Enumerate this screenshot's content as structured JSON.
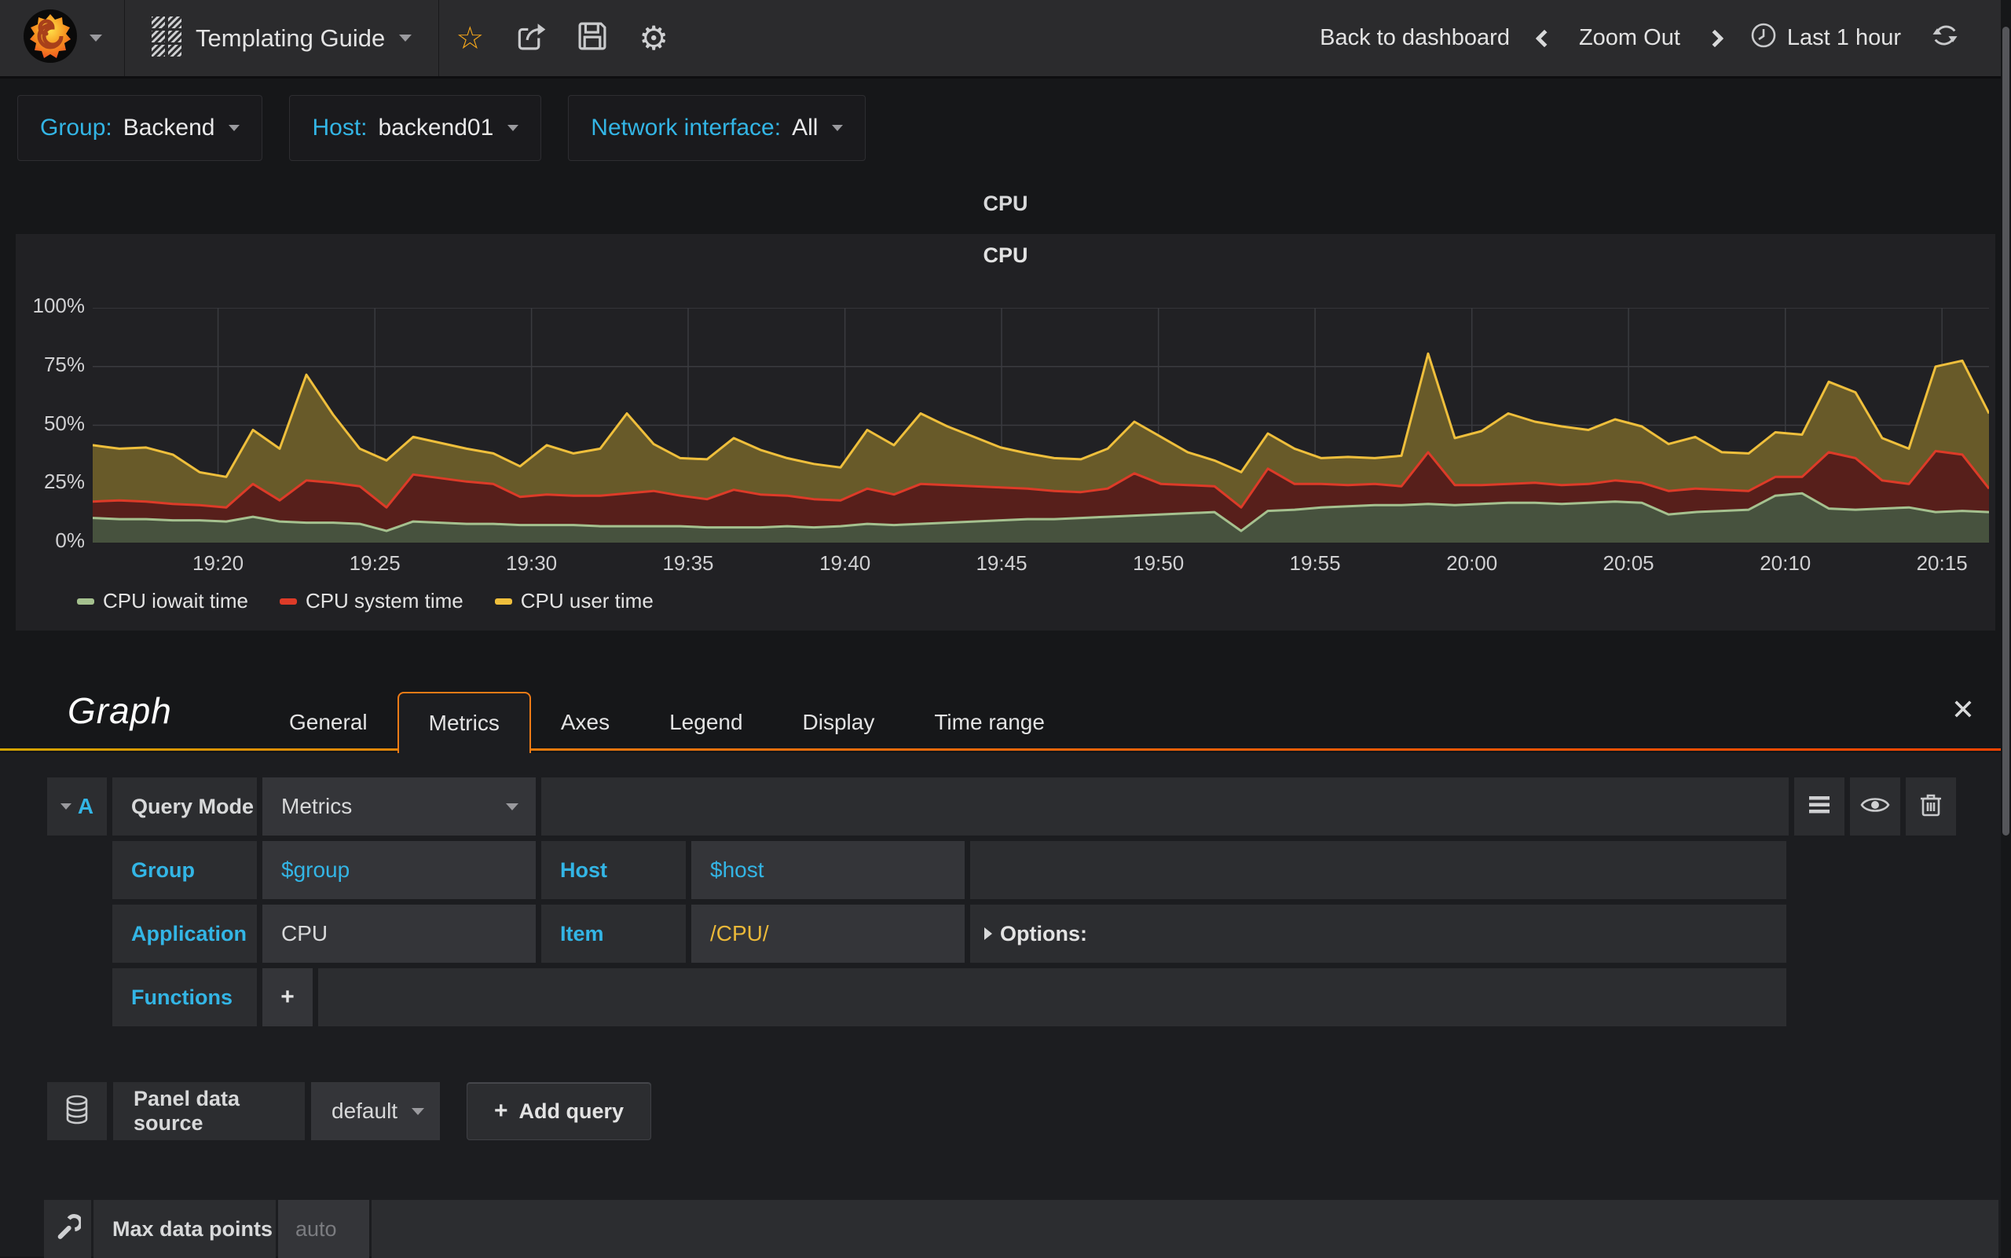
{
  "navbar": {
    "dashboard_title": "Templating Guide",
    "back_to_dashboard": "Back to dashboard",
    "zoom_out": "Zoom Out",
    "time_range": "Last 1 hour"
  },
  "variables": [
    {
      "label": "Group:",
      "value": "Backend"
    },
    {
      "label": "Host:",
      "value": "backend01"
    },
    {
      "label": "Network interface:",
      "value": "All"
    }
  ],
  "row_title": "CPU",
  "panel_title": "CPU",
  "chart_data": {
    "type": "area",
    "stacked": true,
    "title": "CPU",
    "unit": "percent",
    "ylim": [
      0,
      100
    ],
    "grid": true,
    "grid_color": "#3a3b3f",
    "legend_position": "bottom",
    "yticks": [
      "0%",
      "25%",
      "50%",
      "75%",
      "100%"
    ],
    "xticks": [
      {
        "label": "19:20",
        "f": 0.0661
      },
      {
        "label": "19:25",
        "f": 0.1488
      },
      {
        "label": "19:30",
        "f": 0.2314
      },
      {
        "label": "19:35",
        "f": 0.314
      },
      {
        "label": "19:40",
        "f": 0.3967
      },
      {
        "label": "19:45",
        "f": 0.4793
      },
      {
        "label": "19:50",
        "f": 0.562
      },
      {
        "label": "19:55",
        "f": 0.6446
      },
      {
        "label": "20:00",
        "f": 0.7273
      },
      {
        "label": "20:05",
        "f": 0.8099
      },
      {
        "label": "20:10",
        "f": 0.8926
      },
      {
        "label": "20:15",
        "f": 0.9752
      }
    ],
    "series": [
      {
        "name": "CPU iowait time",
        "color": "#A5C18F",
        "fill": "#47523E",
        "values": [
          10.5,
          10,
          10,
          9.5,
          9.5,
          9,
          11,
          9,
          8.5,
          8.5,
          8,
          5,
          9,
          8.5,
          8,
          8,
          7.5,
          7.5,
          7.5,
          7,
          7,
          7,
          7,
          6.5,
          6.5,
          6.5,
          7,
          6.5,
          7,
          8,
          7.5,
          8,
          8.5,
          9,
          9.5,
          10,
          10,
          10.5,
          11,
          11.5,
          12,
          12.5,
          13,
          5,
          13.5,
          14,
          15,
          15.5,
          16,
          16,
          16.5,
          16,
          16.5,
          17,
          17,
          16.5,
          17,
          17.5,
          17,
          12,
          13,
          13.5,
          14,
          20,
          21,
          14.5,
          14,
          14.5,
          15,
          13,
          13.5,
          13
        ]
      },
      {
        "name": "CPU system time",
        "color": "#DD3B28",
        "fill": "#571F1B",
        "values": [
          7,
          8,
          7.5,
          7,
          6.5,
          6,
          14,
          9,
          18,
          17,
          16,
          10,
          20,
          19,
          18,
          17,
          12,
          13,
          12.5,
          13,
          14,
          15,
          13,
          12,
          16,
          14,
          13,
          12,
          11,
          15,
          13,
          17,
          16,
          15,
          14,
          13,
          12,
          11,
          12,
          18,
          13,
          12,
          11,
          10,
          18,
          11,
          10,
          9,
          9,
          8,
          22,
          8.5,
          8,
          8,
          8.5,
          8,
          8,
          9,
          8.5,
          10,
          10,
          9,
          8,
          8,
          7,
          24,
          22,
          12,
          10,
          26,
          24,
          10
        ]
      },
      {
        "name": "CPU user time",
        "color": "#EFBF3C",
        "fill": "#685A29",
        "values": [
          24,
          22,
          23,
          21,
          14,
          13,
          23,
          22,
          45,
          29,
          16,
          20,
          16,
          15,
          14,
          13,
          13,
          21,
          18,
          20,
          34,
          20,
          16,
          17,
          22,
          19,
          16,
          15,
          14,
          25,
          21,
          30,
          25,
          21,
          17,
          15,
          14,
          14,
          17,
          22,
          20,
          14,
          11,
          15,
          15,
          15,
          11,
          12,
          11,
          13,
          42,
          20,
          23,
          30,
          26,
          25,
          23,
          26,
          24,
          20,
          22,
          16,
          16,
          19,
          18,
          30,
          28,
          18,
          15,
          36,
          40,
          32
        ]
      }
    ]
  },
  "editor": {
    "panel_type_title": "Graph",
    "tabs": [
      "General",
      "Metrics",
      "Axes",
      "Legend",
      "Display",
      "Time range"
    ],
    "active_tab": "Metrics",
    "close_label": "✕",
    "query": {
      "ref": "A",
      "mode_label": "Query Mode",
      "mode_value": "Metrics",
      "row1": {
        "l1": "Group",
        "v1": "$group",
        "l2": "Host",
        "v2": "$host"
      },
      "row2": {
        "l1": "Application",
        "v1": "CPU",
        "l2": "Item",
        "v2": "/CPU/",
        "options_label": "Options:"
      },
      "functions_label": "Functions",
      "add_function_label": "+"
    },
    "datasource": {
      "label": "Panel data source",
      "value": "default",
      "plus": "+",
      "add_query_label": "Add query"
    },
    "max_points": {
      "label": "Max data points",
      "placeholder": "auto"
    }
  }
}
